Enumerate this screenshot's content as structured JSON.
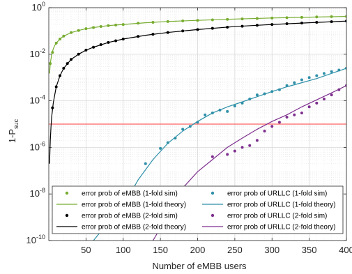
{
  "chart_data": {
    "type": "line",
    "xlabel": "Number of eMBB users",
    "ylabel": {
      "main": "1-P",
      "sub": "suc"
    },
    "xlim": [
      0,
      400
    ],
    "ylim": [
      1e-10,
      1
    ],
    "yscale": "log",
    "grid": true,
    "minor_grid": true,
    "legend_position": "bottom",
    "legend_columns": 2,
    "xticks": [
      50,
      100,
      150,
      200,
      250,
      300,
      350,
      400
    ],
    "xtick_labels": [
      "50",
      "100",
      "150",
      "200",
      "250",
      "300",
      "350",
      "400"
    ],
    "yticks": [
      1e-10,
      1e-08,
      1e-06,
      0.0001,
      0.01,
      1
    ],
    "ytick_labels": [
      {
        "base": "10",
        "exp": "-10"
      },
      {
        "base": "10",
        "exp": "-8"
      },
      {
        "base": "10",
        "exp": "-6"
      },
      {
        "base": "10",
        "exp": "-4"
      },
      {
        "base": "10",
        "exp": "-2"
      },
      {
        "base": "10",
        "exp": "0"
      }
    ],
    "threshold_line": {
      "y": 1e-05,
      "color": "#ff6060"
    },
    "series": [
      {
        "name": "error prob of eMBB (1-fold sim)",
        "kind": "scatter",
        "color": "#77ac30",
        "x": [
          2,
          5,
          10,
          15,
          20,
          30,
          40,
          50,
          60,
          70,
          80,
          90,
          100,
          120,
          140,
          160,
          180,
          200,
          220,
          240,
          260,
          280,
          300,
          320,
          340,
          360,
          380,
          400
        ],
        "y": [
          0.004,
          0.012,
          0.03,
          0.045,
          0.06,
          0.085,
          0.105,
          0.125,
          0.14,
          0.155,
          0.17,
          0.18,
          0.19,
          0.215,
          0.235,
          0.255,
          0.27,
          0.285,
          0.3,
          0.315,
          0.33,
          0.345,
          0.36,
          0.37,
          0.385,
          0.4,
          0.41,
          0.42
        ]
      },
      {
        "name": "error prob of eMBB (1-fold theory)",
        "kind": "line",
        "color": "#77ac30",
        "x": [
          1,
          2,
          4,
          6,
          8,
          10,
          15,
          20,
          30,
          40,
          50,
          60,
          80,
          100,
          130,
          160,
          200,
          250,
          300,
          350,
          400
        ],
        "y": [
          0.0015,
          0.004,
          0.01,
          0.017,
          0.024,
          0.03,
          0.045,
          0.06,
          0.085,
          0.105,
          0.125,
          0.14,
          0.17,
          0.19,
          0.225,
          0.255,
          0.285,
          0.325,
          0.36,
          0.39,
          0.42
        ]
      },
      {
        "name": "error prob of eMBB (2-fold sim)",
        "kind": "scatter",
        "color": "#000000",
        "x": [
          5,
          10,
          15,
          20,
          25,
          30,
          40,
          50,
          60,
          70,
          80,
          90,
          100,
          120,
          140,
          160,
          180,
          200,
          220,
          240,
          260,
          280,
          300,
          320,
          340,
          360,
          380,
          400
        ],
        "y": [
          5e-05,
          0.0004,
          0.0012,
          0.0025,
          0.004,
          0.006,
          0.01,
          0.015,
          0.02,
          0.026,
          0.032,
          0.038,
          0.045,
          0.058,
          0.072,
          0.086,
          0.1,
          0.115,
          0.13,
          0.145,
          0.16,
          0.175,
          0.19,
          0.205,
          0.22,
          0.235,
          0.25,
          0.265
        ]
      },
      {
        "name": "error prob of eMBB (2-fold theory)",
        "kind": "line",
        "color": "#000000",
        "x": [
          1,
          2,
          3,
          4,
          6,
          8,
          10,
          15,
          20,
          30,
          40,
          50,
          60,
          80,
          100,
          130,
          160,
          200,
          250,
          300,
          350,
          400
        ],
        "y": [
          2e-07,
          2e-06,
          8e-06,
          2.2e-05,
          8e-05,
          0.00018,
          0.0004,
          0.0012,
          0.0025,
          0.006,
          0.01,
          0.015,
          0.02,
          0.032,
          0.045,
          0.065,
          0.086,
          0.115,
          0.155,
          0.19,
          0.225,
          0.265
        ]
      },
      {
        "name": "error prob of URLLC (1-fold sim)",
        "kind": "scatter",
        "color": "#2e8fa8",
        "x": [
          130,
          150,
          160,
          170,
          180,
          190,
          200,
          210,
          220,
          230,
          240,
          250,
          260,
          270,
          280,
          290,
          300,
          310,
          320,
          330,
          340,
          350,
          360,
          370,
          380,
          390,
          400
        ],
        "y": [
          2e-07,
          9e-07,
          1.6e-06,
          2.5e-06,
          6e-06,
          8e-06,
          1.2e-05,
          2.5e-05,
          3e-05,
          4e-05,
          3.5e-05,
          6e-05,
          8e-05,
          0.00012,
          0.00018,
          0.0002,
          0.00025,
          0.0003,
          0.00045,
          0.0006,
          0.0008,
          0.001,
          0.0012,
          0.0015,
          0.0018,
          0.0021,
          0.0025
        ]
      },
      {
        "name": "error prob of URLLC (1-fold theory)",
        "kind": "line",
        "color": "#2e8fa8",
        "x": [
          60,
          80,
          100,
          120,
          140,
          160,
          180,
          200,
          220,
          240,
          260,
          280,
          300,
          320,
          340,
          360,
          380,
          400
        ],
        "y": [
          1e-10,
          6e-10,
          3e-09,
          4e-08,
          3e-07,
          1.5e-06,
          5e-06,
          1.3e-05,
          3e-05,
          5.5e-05,
          9e-05,
          0.00015,
          0.00025,
          0.0004,
          0.0006,
          0.0009,
          0.0015,
          0.0025
        ]
      },
      {
        "name": "error prob of URLLC (2-fold sim)",
        "kind": "scatter",
        "color": "#7e2f8e",
        "x": [
          220,
          240,
          250,
          260,
          270,
          280,
          290,
          300,
          310,
          320,
          330,
          340,
          350,
          360,
          370,
          380,
          390,
          400
        ],
        "y": [
          4e-07,
          5e-07,
          7e-07,
          1e-06,
          1.2e-06,
          2e-06,
          5e-06,
          8e-06,
          1.2e-05,
          2e-05,
          2.5e-05,
          3e-05,
          5.5e-05,
          8e-05,
          0.00012,
          0.00018,
          0.0003,
          0.00045
        ]
      },
      {
        "name": "error prob of URLLC (2-fold theory)",
        "kind": "line",
        "color": "#7e2f8e",
        "x": [
          140,
          160,
          180,
          200,
          220,
          240,
          260,
          280,
          300,
          320,
          340,
          360,
          380,
          400
        ],
        "y": [
          1e-10,
          1.2e-09,
          1.8e-08,
          9e-08,
          3e-07,
          1e-06,
          2.5e-06,
          6e-06,
          1.3e-05,
          2.5e-05,
          5.5e-05,
          0.00011,
          0.00022,
          0.00045
        ]
      }
    ]
  }
}
